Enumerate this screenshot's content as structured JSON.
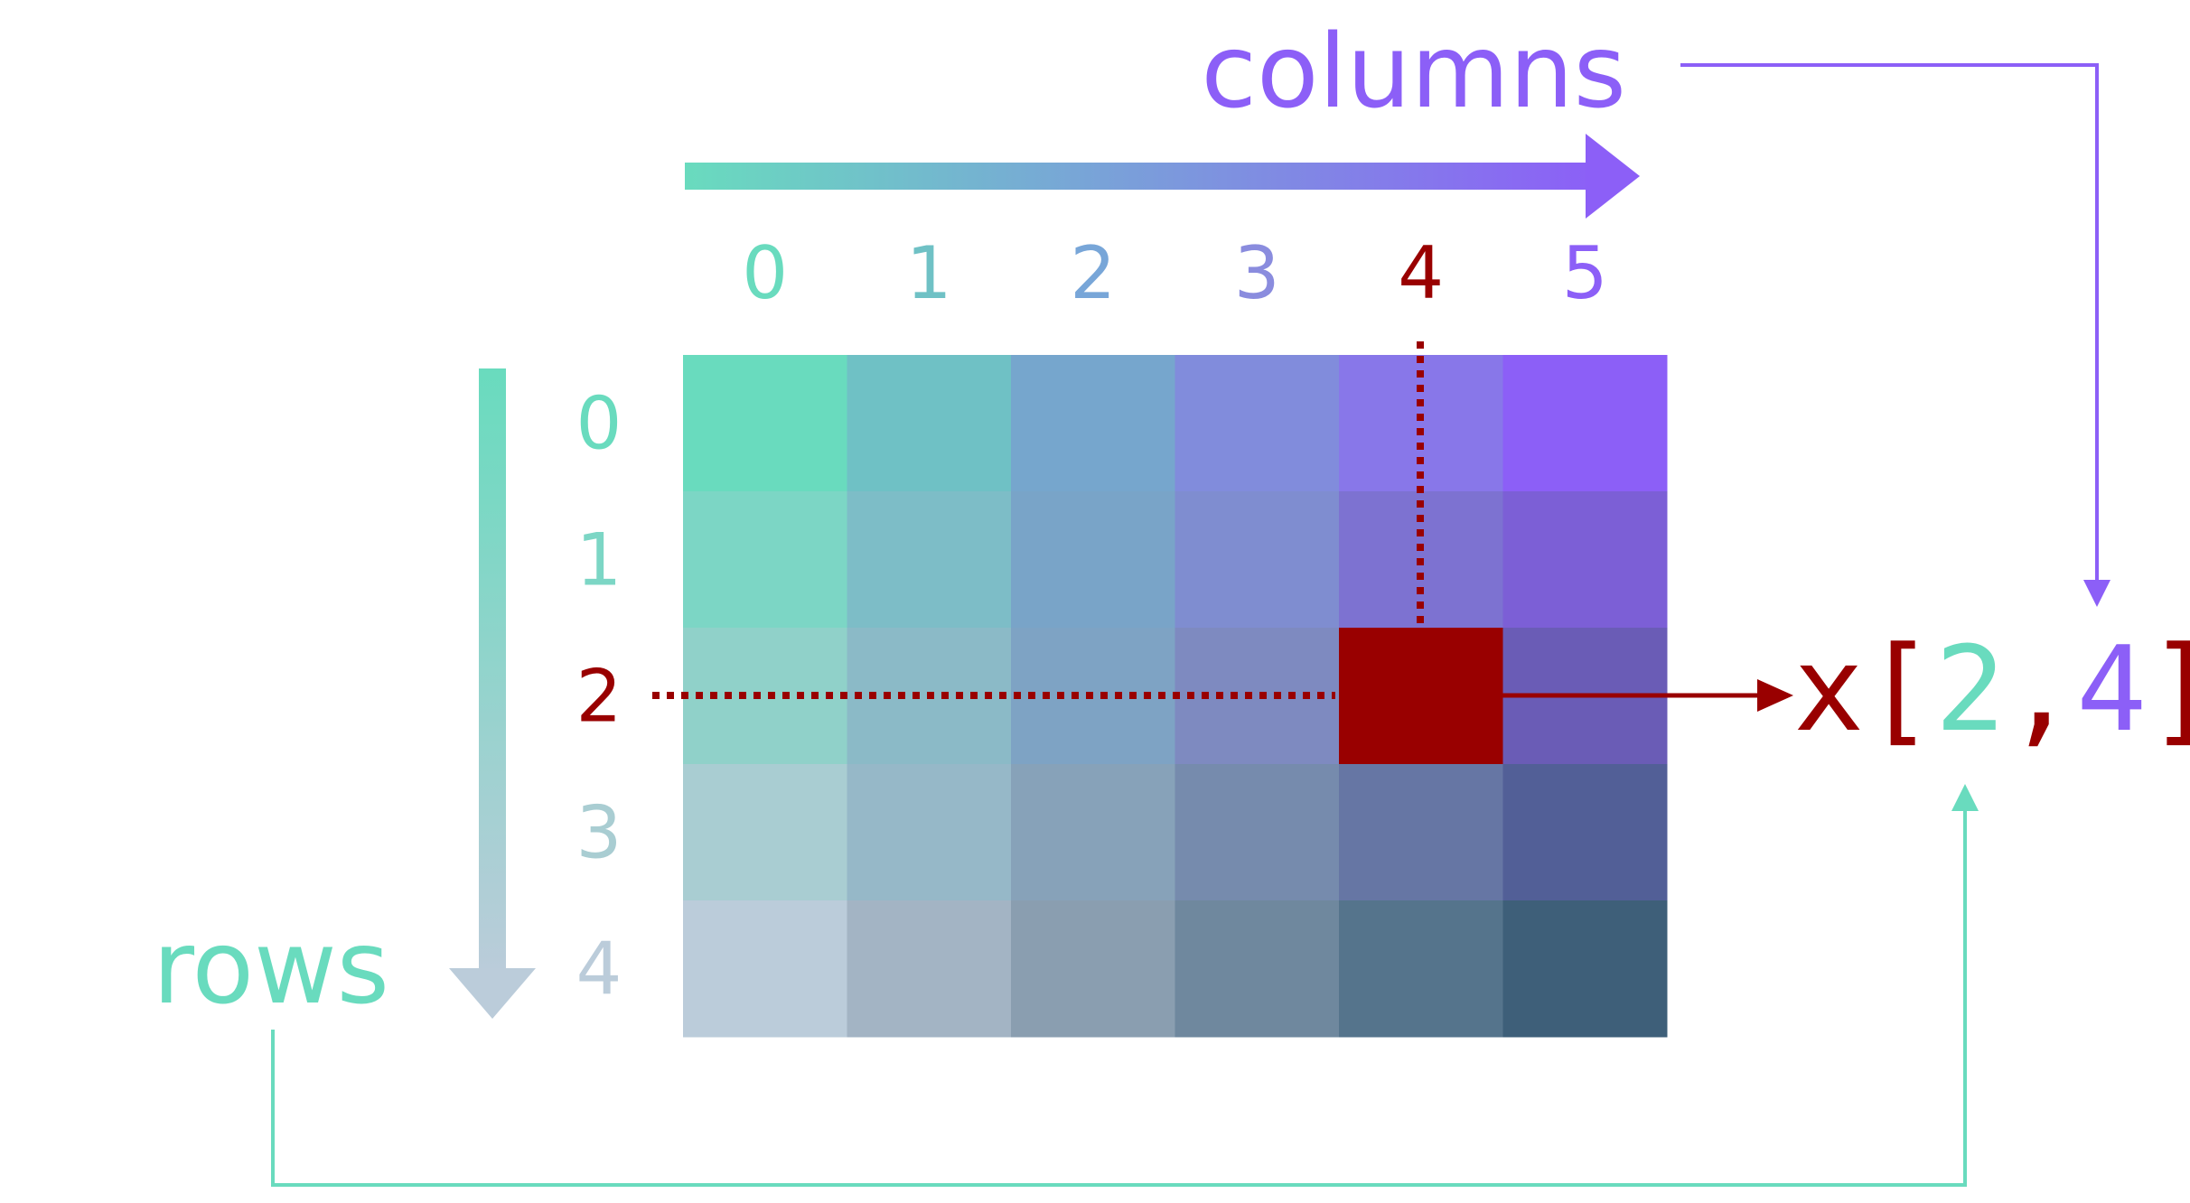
{
  "labels": {
    "columns": "columns",
    "rows": "rows"
  },
  "column_indices": [
    "0",
    "1",
    "2",
    "3",
    "4",
    "5"
  ],
  "row_indices": [
    "0",
    "1",
    "2",
    "3",
    "4"
  ],
  "expression": {
    "name": "x",
    "open": "[",
    "row": "2",
    "comma": ",",
    "col": "4",
    "close": "]"
  },
  "selected": {
    "row": 2,
    "col": 4
  },
  "colors": {
    "teal": "#69dbbe",
    "purple": "#8c5ff7",
    "highlight": "#990000",
    "grid": [
      [
        "#69dbbe",
        "#6fc1c5",
        "#76a6cd",
        "#818cdc",
        "#8877e9",
        "#8c5ff7"
      ],
      [
        "#7cd6c5",
        "#7dbdc7",
        "#79a4c8",
        "#7f8dd0",
        "#7d72d1",
        "#7c5fd6"
      ],
      [
        "#90d1c9",
        "#8bbac7",
        "#7ea3c4",
        "#7e8ac0",
        "#990000",
        "#6a5cb6"
      ],
      [
        "#a9cdd2",
        "#96b8c8",
        "#87a2b9",
        "#768bad",
        "#6676a4",
        "#525f97"
      ],
      [
        "#bbccda",
        "#a3b4c4",
        "#8a9eb0",
        "#6f889e",
        "#55748c",
        "#3e5f79"
      ]
    ],
    "col_labels": [
      "#69dbbe",
      "#6fc1c5",
      "#78a6d8",
      "#8a8cde",
      "#990000",
      "#8c5ff7"
    ],
    "row_labels": [
      "#69dbbe",
      "#7cd6c5",
      "#990000",
      "#a9cdd2",
      "#bbccda"
    ]
  }
}
